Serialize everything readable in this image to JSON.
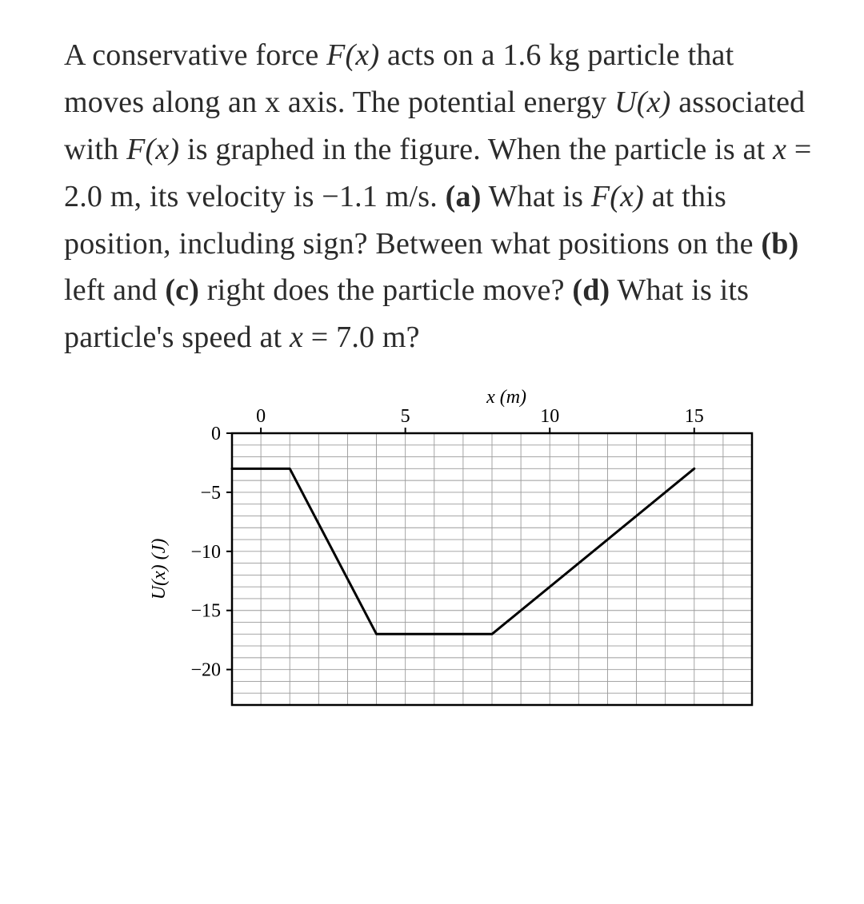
{
  "text": {
    "p1a": "A conservative force ",
    "fx": "F(x)",
    "p1b": " acts on a 1.6 kg particle that moves along an x axis. The potential energy ",
    "ux": "U(x)",
    "p1c": " associated with ",
    "p1d": " is graphed in the figure. When the particle is at ",
    "xvar": "x",
    "p1e": " = 2.0 m, its velocity is −1.1 m/s. ",
    "labelA": "(a)",
    "p2a": " What is ",
    "p2b": " at this position, including sign? Between what positions on the ",
    "labelB": "(b)",
    "p2c": " left and ",
    "labelC": "(c)",
    "p2d": " right does the particle move? ",
    "labelD": "(d)",
    "p2e": " What is its particle's speed at ",
    "p2f": " = 7.0 m?"
  },
  "chart": {
    "type": "line",
    "xlabel": "x (m)",
    "ylabel": "U(x) (J)",
    "xlabel_fontsize": 24,
    "ylabel_fontsize": 24,
    "tick_fontsize": 24,
    "xlim": [
      -1,
      17
    ],
    "ylim": [
      -23,
      0
    ],
    "xticks": [
      0,
      5,
      10,
      15
    ],
    "yticks": [
      0,
      -5,
      -10,
      -15,
      -20
    ],
    "minor_x_step": 1,
    "minor_y_step": 1,
    "points": [
      [
        -1,
        -3
      ],
      [
        1,
        -3
      ],
      [
        4,
        -17
      ],
      [
        8,
        -17
      ],
      [
        15,
        -3
      ]
    ],
    "line_color": "#000000",
    "line_width": 3,
    "grid_color": "#9a9a9a",
    "grid_width": 0.9,
    "border_color": "#000000",
    "border_width": 2.5,
    "background_color": "#ffffff",
    "text_color": "#000000"
  }
}
